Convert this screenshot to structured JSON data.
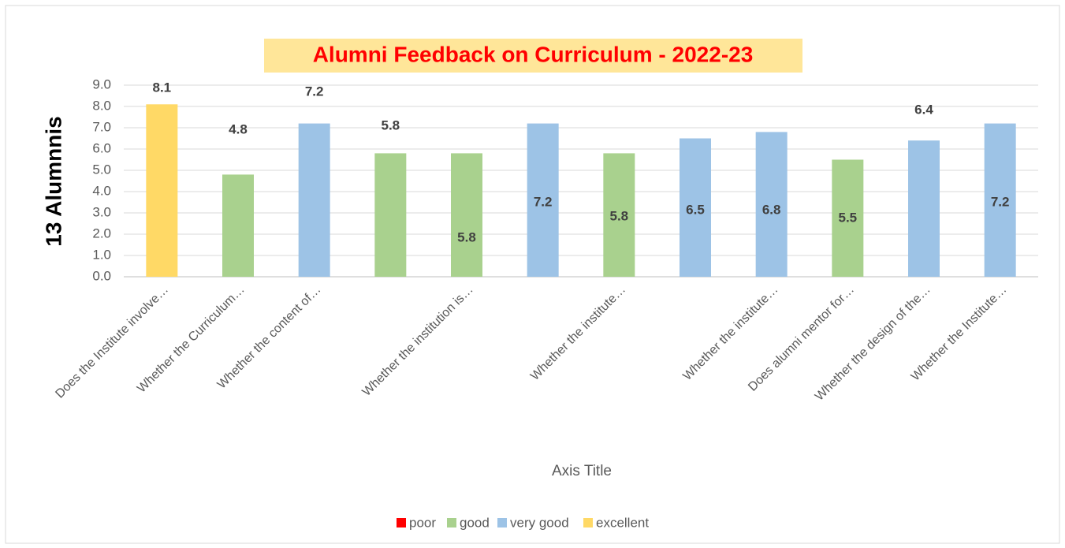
{
  "chart_data": {
    "type": "bar",
    "stacked": true,
    "title": "Alumni Feedback on Curriculum  - 2022-23",
    "y_axis_label": "13 Alumnnis",
    "x_axis_label": "Axis Title",
    "categories": [
      "Does the Institute involve…",
      "Whether the Curriculum…",
      "Whether the content of…",
      null,
      "Whether the institution is…",
      null,
      "Whether the institute…",
      null,
      "Whether the institute…",
      "Does alumni mentor for…",
      "Whether the design of the…",
      "Whether the Institute…"
    ],
    "series": [
      {
        "name": "poor",
        "color": "#ff0000",
        "values": [
          null,
          null,
          null,
          null,
          null,
          null,
          null,
          null,
          null,
          null,
          null,
          null
        ]
      },
      {
        "name": "good",
        "color": "#a9d18e",
        "values": [
          null,
          4.8,
          null,
          5.8,
          5.8,
          null,
          5.8,
          null,
          null,
          5.5,
          null,
          null
        ]
      },
      {
        "name": "very good",
        "color": "#9dc3e6",
        "values": [
          null,
          null,
          7.2,
          null,
          null,
          7.2,
          null,
          6.5,
          6.8,
          null,
          6.4,
          7.2
        ]
      },
      {
        "name": "excellent",
        "color": "#ffd966",
        "values": [
          8.1,
          null,
          null,
          null,
          null,
          null,
          null,
          null,
          null,
          null,
          null,
          null
        ]
      }
    ],
    "ylim": [
      0,
      9
    ],
    "yticks": [
      {
        "value": 0,
        "label": "0.0"
      },
      {
        "value": 1,
        "label": "1.0"
      },
      {
        "value": 2,
        "label": "2.0"
      },
      {
        "value": 3,
        "label": "3.0"
      },
      {
        "value": 4,
        "label": "4.0"
      },
      {
        "value": 5,
        "label": "5.0"
      },
      {
        "value": 6,
        "label": "6.0"
      },
      {
        "value": 7,
        "label": "7.0"
      },
      {
        "value": 8,
        "label": "8.0"
      },
      {
        "value": 9,
        "label": "9.0"
      }
    ],
    "grid": true,
    "legend": "bottom"
  }
}
